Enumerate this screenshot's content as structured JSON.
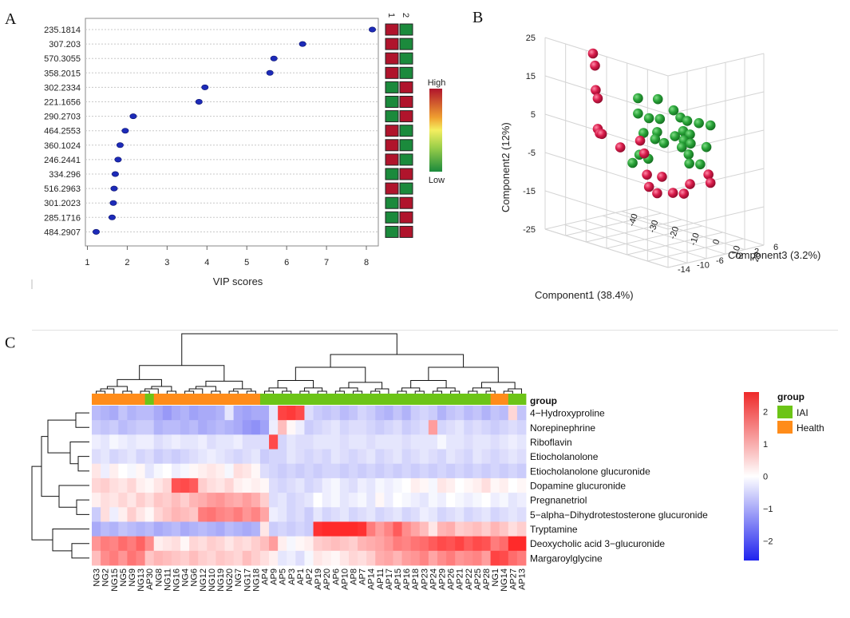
{
  "panels": {
    "a": "A",
    "b": "B",
    "c": "C"
  },
  "colors": {
    "dot": "#1d2bb8",
    "high": "#b0142c",
    "low": "#1b8a3c",
    "iai": "#6cc417",
    "health": "#ff8c1a",
    "green3d": "#29a338",
    "red3d": "#d81b4a",
    "heat_hi": "#ee2a2a",
    "heat_mid": "#ffffff",
    "heat_lo": "#1f22ee"
  },
  "chart_data": [
    {
      "type": "scatter",
      "xlabel": "VIP scores",
      "x_ticks": [
        "1",
        "2",
        "3",
        "4",
        "5",
        "6",
        "7",
        "8"
      ],
      "xlim": [
        0.95,
        8.3
      ],
      "categories": [
        "235.1814",
        "307.203",
        "570.3055",
        "358.2015",
        "302.2334",
        "221.1656",
        "290.2703",
        "464.2553",
        "360.1024",
        "246.2441",
        "334.296",
        "516.2963",
        "301.2023",
        "285.1716",
        "484.2907"
      ],
      "values": [
        8.15,
        6.4,
        5.68,
        5.58,
        3.95,
        3.8,
        2.15,
        1.95,
        1.82,
        1.77,
        1.7,
        1.67,
        1.65,
        1.62,
        1.22
      ],
      "group_headers": [
        "1",
        "2"
      ],
      "group_levels": [
        [
          "high",
          "low"
        ],
        [
          "high",
          "low"
        ],
        [
          "high",
          "low"
        ],
        [
          "high",
          "low"
        ],
        [
          "low",
          "high"
        ],
        [
          "low",
          "high"
        ],
        [
          "low",
          "high"
        ],
        [
          "high",
          "low"
        ],
        [
          "high",
          "low"
        ],
        [
          "high",
          "low"
        ],
        [
          "low",
          "high"
        ],
        [
          "high",
          "low"
        ],
        [
          "low",
          "high"
        ],
        [
          "low",
          "high"
        ],
        [
          "low",
          "high"
        ]
      ],
      "legend_labels": [
        "High",
        "Low"
      ]
    },
    {
      "type": "scatter3d",
      "xlabel": "Component1 (38.4%)",
      "ylabel": "Component2 (12%)",
      "zlabel": "Component3 (3.2%)",
      "x_ticks": [
        "-40",
        "-30",
        "-20",
        "-10",
        "0",
        "10",
        "20"
      ],
      "y_ticks": [
        "25",
        "15",
        "5",
        "-5",
        "-15",
        "-25"
      ],
      "z_ticks": [
        "-14",
        "-10",
        "-6",
        "-2",
        "2",
        "6"
      ],
      "series": [
        {
          "name": "IAI",
          "color": "green",
          "points": [
            [
              -4,
              14,
              -10
            ],
            [
              1,
              14,
              -8
            ],
            [
              4,
              11,
              -6
            ],
            [
              5,
              9,
              -5
            ],
            [
              6,
              8,
              -4
            ],
            [
              -4,
              10,
              -10
            ],
            [
              -1,
              9,
              -9
            ],
            [
              2,
              9,
              -8
            ],
            [
              7,
              7,
              -2
            ],
            [
              8,
              6,
              0
            ],
            [
              4,
              5,
              -4
            ],
            [
              5,
              4,
              -3
            ],
            [
              -6,
              4,
              -8
            ],
            [
              -4,
              4,
              -6
            ],
            [
              0,
              3,
              -4
            ],
            [
              2,
              2,
              -3
            ],
            [
              3,
              1,
              -2
            ],
            [
              6,
              0,
              0
            ],
            [
              -5,
              2,
              -6
            ],
            [
              -3,
              1,
              -5
            ],
            [
              1,
              0,
              -3
            ],
            [
              -8,
              -2,
              -8
            ],
            [
              -6,
              -3,
              -7
            ],
            [
              2,
              -2,
              -2
            ],
            [
              3,
              -5,
              0
            ],
            [
              0,
              -5,
              -1
            ],
            [
              -9,
              -4,
              -9
            ]
          ]
        },
        {
          "name": "Health",
          "color": "red",
          "points": [
            [
              -26,
              22,
              -10
            ],
            [
              -25,
              19,
              -10
            ],
            [
              -27,
              12,
              -9
            ],
            [
              -26,
              10,
              -9
            ],
            [
              -33,
              0,
              -6
            ],
            [
              -32,
              -1,
              -6
            ],
            [
              -31,
              -1,
              -6
            ],
            [
              -22,
              -3,
              -6
            ],
            [
              -17,
              -1,
              -4
            ],
            [
              -15,
              -4,
              -4
            ],
            [
              -11,
              -10,
              -2
            ],
            [
              -16,
              -10,
              -3
            ],
            [
              -15,
              -13,
              -3
            ],
            [
              -11,
              -14,
              -3
            ],
            [
              -8,
              -14,
              -1
            ],
            [
              7,
              -7,
              0
            ],
            [
              8,
              -9,
              0
            ],
            [
              -2,
              -11,
              0
            ],
            [
              -5,
              -14,
              0
            ]
          ]
        }
      ]
    },
    {
      "type": "heatmap",
      "group_title": "group",
      "legend_title": "group",
      "legend_entries": [
        "IAI",
        "Health"
      ],
      "colorbar_ticks": [
        "2",
        "1",
        "0",
        "−1",
        "−2"
      ],
      "vmin": -2.6,
      "vmax": 2.6,
      "features": [
        "4−Hydroxyproline",
        "Norepinephrine",
        "Riboflavin",
        "Etiocholanolone",
        "Etiocholanolone glucuronide",
        "Dopamine glucuronide",
        "Pregnanetriol",
        "5−alpha−Dihydrotestosterone glucuronide",
        "Tryptamine",
        "Deoxycholic acid 3−glucuronide",
        "Margaroylglycine"
      ],
      "columns": [
        "NG3",
        "NG2",
        "NG15",
        "NG5",
        "NG9",
        "NG13",
        "AP30",
        "NG8",
        "NG11",
        "NG16",
        "NG4",
        "NG6",
        "NG12",
        "NG10",
        "NG19",
        "NG20",
        "NG7",
        "NG17",
        "NG18",
        "AP4",
        "AP9",
        "AP5",
        "AP3",
        "AP1",
        "AP2",
        "AP19",
        "AP20",
        "AP6",
        "AP10",
        "AP8",
        "AP7",
        "AP14",
        "AP11",
        "AP17",
        "AP15",
        "AP16",
        "AP18",
        "AP23",
        "AP24",
        "AP29",
        "AP26",
        "AP21",
        "AP22",
        "AP25",
        "AP28",
        "NG1",
        "NG14",
        "AP27",
        "AP13"
      ],
      "column_groups": [
        "Health",
        "Health",
        "Health",
        "Health",
        "Health",
        "Health",
        "IAI",
        "Health",
        "Health",
        "Health",
        "Health",
        "Health",
        "Health",
        "Health",
        "Health",
        "Health",
        "Health",
        "Health",
        "Health",
        "IAI",
        "IAI",
        "IAI",
        "IAI",
        "IAI",
        "IAI",
        "IAI",
        "IAI",
        "IAI",
        "IAI",
        "IAI",
        "IAI",
        "IAI",
        "IAI",
        "IAI",
        "IAI",
        "IAI",
        "IAI",
        "IAI",
        "IAI",
        "IAI",
        "IAI",
        "IAI",
        "IAI",
        "IAI",
        "IAI",
        "Health",
        "Health",
        "IAI",
        "IAI"
      ],
      "values": [
        [
          -0.8,
          -0.9,
          -1.0,
          -0.7,
          -0.9,
          -0.8,
          -0.8,
          -1.0,
          -1.2,
          -1.0,
          -0.9,
          -1.1,
          -1.0,
          -1.0,
          -0.9,
          -0.3,
          -1.0,
          -1.1,
          -1.0,
          -1.0,
          -0.3,
          2.3,
          2.4,
          2.2,
          -0.4,
          -0.6,
          -0.7,
          -0.6,
          -0.8,
          -0.7,
          -0.5,
          -0.6,
          -0.8,
          -0.9,
          -0.7,
          -0.9,
          -0.6,
          -0.5,
          -0.6,
          -0.9,
          -0.7,
          -0.6,
          -0.8,
          -0.7,
          -0.9,
          -0.7,
          -0.8,
          0.5,
          -0.7
        ],
        [
          -0.6,
          -0.7,
          -0.6,
          -0.8,
          -0.7,
          -0.6,
          -0.6,
          -0.9,
          -0.8,
          -0.8,
          -0.9,
          -0.8,
          -1.0,
          -0.9,
          -0.8,
          -0.9,
          -1.0,
          -1.2,
          -1.3,
          -1.1,
          -0.2,
          0.8,
          0.1,
          -0.2,
          -0.6,
          -0.5,
          -0.4,
          -0.3,
          -0.5,
          -0.4,
          -0.4,
          -0.5,
          -0.6,
          -0.5,
          -0.4,
          -0.6,
          -0.5,
          -0.4,
          1.2,
          -0.5,
          -0.4,
          -0.3,
          -0.5,
          -0.4,
          -0.5,
          -0.6,
          -0.5,
          -0.4,
          -0.5
        ],
        [
          -0.2,
          -0.3,
          -0.1,
          -0.2,
          -0.3,
          -0.2,
          -0.2,
          -0.4,
          -0.3,
          -0.2,
          -0.3,
          -0.3,
          -0.2,
          -0.4,
          -0.3,
          -0.3,
          -0.2,
          -0.4,
          -0.4,
          -0.4,
          2.2,
          -0.5,
          -0.3,
          -0.4,
          -0.4,
          -0.3,
          -0.3,
          -0.3,
          -0.4,
          -0.3,
          -0.3,
          -0.4,
          -0.3,
          -0.3,
          -0.3,
          -0.4,
          -0.3,
          -0.3,
          -0.3,
          -0.1,
          -0.3,
          -0.3,
          -0.4,
          -0.3,
          -0.3,
          -0.4,
          -0.3,
          -0.2,
          -0.3
        ],
        [
          -0.4,
          -0.3,
          -0.5,
          -0.4,
          -0.3,
          -0.5,
          -0.4,
          -0.6,
          -0.5,
          -0.6,
          -0.5,
          -0.4,
          -0.3,
          -0.2,
          -0.3,
          -0.4,
          -0.5,
          -0.4,
          -0.3,
          -0.6,
          -0.5,
          -0.5,
          -0.3,
          -0.4,
          -0.5,
          -0.4,
          -0.5,
          -0.3,
          -0.4,
          -0.5,
          -0.4,
          -0.3,
          -0.5,
          -0.4,
          -0.3,
          -0.5,
          -0.4,
          -0.3,
          -0.4,
          -0.5,
          -0.3,
          -0.4,
          -0.5,
          -0.3,
          -0.4,
          -0.5,
          -0.4,
          -0.3,
          -0.4
        ],
        [
          0.3,
          -0.2,
          0.2,
          0.0,
          -0.1,
          0.1,
          -0.3,
          -0.1,
          0.0,
          -0.2,
          -0.1,
          0.1,
          0.2,
          0.3,
          0.2,
          -0.1,
          0.4,
          0.3,
          0.1,
          -0.4,
          -0.5,
          -0.6,
          -0.5,
          -0.6,
          -0.5,
          -0.6,
          -0.5,
          -0.5,
          -0.6,
          -0.5,
          -0.6,
          -0.5,
          -0.6,
          -0.5,
          -0.6,
          -0.5,
          -0.6,
          -0.5,
          -0.6,
          -0.5,
          -0.6,
          -0.5,
          -0.6,
          -0.5,
          -0.6,
          -0.5,
          -0.6,
          -0.5,
          -0.6
        ],
        [
          0.5,
          0.6,
          0.4,
          0.3,
          0.5,
          0.2,
          0.1,
          0.3,
          0.5,
          2.1,
          2.2,
          2.0,
          0.6,
          0.4,
          0.3,
          0.5,
          0.2,
          0.1,
          0.2,
          0.1,
          -0.4,
          -0.5,
          -0.4,
          -0.3,
          -0.5,
          -0.4,
          -0.2,
          -0.1,
          -0.3,
          -0.4,
          -0.2,
          -0.3,
          -0.1,
          -0.2,
          -0.1,
          0.0,
          0.2,
          0.1,
          -0.1,
          0.3,
          0.2,
          0.0,
          0.1,
          0.2,
          0.4,
          0.1,
          0.2,
          0.0,
          0.1
        ],
        [
          0.2,
          0.4,
          0.3,
          0.5,
          0.3,
          0.6,
          0.4,
          0.7,
          0.6,
          0.8,
          0.6,
          0.9,
          1.0,
          1.2,
          1.3,
          1.1,
          1.0,
          1.2,
          1.0,
          0.6,
          -0.4,
          -0.3,
          -0.5,
          -0.4,
          -0.3,
          0.0,
          -0.2,
          -0.1,
          -0.3,
          -0.2,
          -0.1,
          -0.3,
          0.1,
          -0.2,
          0.0,
          -0.1,
          -0.2,
          -0.3,
          -0.1,
          -0.2,
          0.0,
          -0.1,
          -0.2,
          -0.1,
          0.0,
          -0.2,
          -0.1,
          -0.3,
          -0.2
        ],
        [
          -0.6,
          0.4,
          -0.2,
          0.2,
          0.6,
          0.3,
          0.1,
          0.5,
          0.7,
          0.9,
          0.8,
          0.7,
          1.6,
          1.7,
          1.5,
          1.4,
          1.6,
          1.3,
          1.5,
          1.1,
          -0.2,
          -0.3,
          -0.5,
          -0.4,
          -0.6,
          -0.3,
          -0.5,
          -0.4,
          -0.3,
          -0.5,
          -0.4,
          -0.3,
          -0.5,
          -0.4,
          -0.3,
          -0.5,
          -0.4,
          -0.2,
          -0.3,
          -0.5,
          -0.4,
          -0.3,
          -0.5,
          -0.4,
          -0.3,
          -0.5,
          -0.4,
          -0.3,
          -0.4
        ],
        [
          -1.0,
          -0.8,
          -0.9,
          -0.7,
          -0.8,
          -0.9,
          -0.8,
          -1.0,
          -0.9,
          -0.8,
          -1.0,
          -0.9,
          -0.8,
          -0.9,
          -1.0,
          -0.8,
          -0.9,
          -1.0,
          -0.9,
          0.3,
          -0.6,
          -0.5,
          -0.6,
          -0.5,
          -0.6,
          2.5,
          2.6,
          2.6,
          2.7,
          2.6,
          2.5,
          1.6,
          1.2,
          1.5,
          2.0,
          1.4,
          1.1,
          0.8,
          0.3,
          0.9,
          1.0,
          0.6,
          0.7,
          0.8,
          0.6,
          0.9,
          0.7,
          0.4,
          0.6
        ],
        [
          1.3,
          1.6,
          1.5,
          1.8,
          1.6,
          1.9,
          1.4,
          0.2,
          0.3,
          0.4,
          0.1,
          0.5,
          0.4,
          0.6,
          0.5,
          0.3,
          0.5,
          0.4,
          0.6,
          0.8,
          1.2,
          0.2,
          -0.1,
          0.1,
          0.2,
          0.6,
          0.7,
          0.8,
          0.7,
          0.6,
          0.9,
          1.0,
          1.1,
          1.3,
          1.6,
          1.5,
          1.7,
          1.8,
          2.0,
          2.2,
          2.1,
          2.3,
          2.0,
          2.2,
          2.1,
          1.6,
          1.8,
          2.6,
          2.7
        ],
        [
          0.8,
          1.4,
          1.6,
          1.3,
          1.7,
          1.5,
          0.7,
          0.9,
          0.8,
          0.7,
          0.6,
          0.8,
          0.6,
          0.5,
          0.7,
          0.6,
          0.5,
          0.8,
          0.6,
          0.4,
          0.2,
          -0.3,
          -0.2,
          -0.4,
          -0.1,
          0.3,
          0.2,
          0.1,
          0.3,
          0.5,
          0.4,
          0.6,
          1.0,
          1.1,
          0.9,
          1.2,
          1.3,
          1.5,
          1.1,
          1.4,
          1.6,
          1.3,
          1.4,
          1.5,
          1.2,
          2.3,
          2.2,
          1.8,
          1.6
        ]
      ]
    }
  ]
}
